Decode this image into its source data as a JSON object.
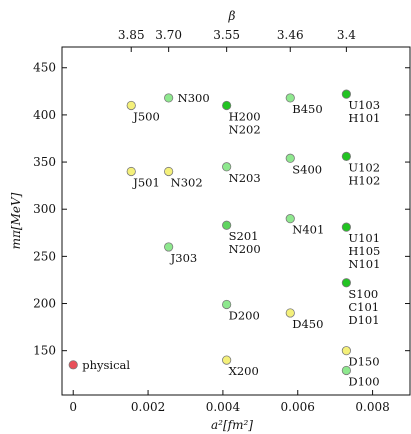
{
  "chart_data": {
    "type": "scatter",
    "title": "",
    "xlabel": "a²[fm²]",
    "ylabel": "mπ[MeV]",
    "top_xlabel": "β",
    "xlim": [
      -0.0003,
      0.009
    ],
    "ylim": [
      103,
      472
    ],
    "x_ticks": [
      {
        "value": 0,
        "label": "0"
      },
      {
        "value": 0.002,
        "label": "0.002"
      },
      {
        "value": 0.004,
        "label": "0.004"
      },
      {
        "value": 0.006,
        "label": "0.006"
      },
      {
        "value": 0.008,
        "label": "0.008"
      }
    ],
    "y_ticks": [
      {
        "value": 150,
        "label": "150"
      },
      {
        "value": 200,
        "label": "200"
      },
      {
        "value": 250,
        "label": "250"
      },
      {
        "value": 300,
        "label": "300"
      },
      {
        "value": 350,
        "label": "350"
      },
      {
        "value": 400,
        "label": "400"
      },
      {
        "value": 450,
        "label": "450"
      }
    ],
    "top_ticks": [
      {
        "value": 0.00155,
        "label": "3.85"
      },
      {
        "value": 0.00255,
        "label": "3.70"
      },
      {
        "value": 0.0041,
        "label": "3.55"
      },
      {
        "value": 0.0058,
        "label": "3.46"
      },
      {
        "value": 0.0073,
        "label": "3.4"
      }
    ],
    "grid": false,
    "colors": {
      "physical": "#e8505a",
      "yellow": "#f4f07a",
      "green_light": "#8ee88e",
      "green_mid": "#5fd45f",
      "green_dark": "#22c322",
      "stroke": "#7a7a7a"
    },
    "points": [
      {
        "x": 0.0,
        "y": 135,
        "color": "physical",
        "labels": [
          "physical"
        ],
        "pos": "right"
      },
      {
        "x": 0.00155,
        "y": 410,
        "color": "yellow",
        "labels": [
          "J500"
        ],
        "pos": "below"
      },
      {
        "x": 0.00155,
        "y": 340,
        "color": "yellow",
        "labels": [
          "J501"
        ],
        "pos": "below"
      },
      {
        "x": 0.00255,
        "y": 418,
        "color": "green_light",
        "labels": [
          "N300"
        ],
        "pos": "right"
      },
      {
        "x": 0.00255,
        "y": 340,
        "color": "yellow",
        "labels": [
          "N302"
        ],
        "pos": "below"
      },
      {
        "x": 0.00255,
        "y": 260,
        "color": "green_light",
        "labels": [
          "J303"
        ],
        "pos": "below"
      },
      {
        "x": 0.0041,
        "y": 410,
        "color": "green_dark",
        "labels": [
          "H200",
          "N202"
        ],
        "pos": "below"
      },
      {
        "x": 0.0041,
        "y": 345,
        "color": "green_light",
        "labels": [
          "N203"
        ],
        "pos": "below"
      },
      {
        "x": 0.0041,
        "y": 283,
        "color": "green_mid",
        "labels": [
          "S201",
          "N200"
        ],
        "pos": "below"
      },
      {
        "x": 0.0041,
        "y": 199,
        "color": "green_light",
        "labels": [
          "D200"
        ],
        "pos": "below"
      },
      {
        "x": 0.0041,
        "y": 140,
        "color": "yellow",
        "labels": [
          "X200"
        ],
        "pos": "below"
      },
      {
        "x": 0.0058,
        "y": 418,
        "color": "green_light",
        "labels": [
          "B450"
        ],
        "pos": "below"
      },
      {
        "x": 0.0058,
        "y": 354,
        "color": "green_light",
        "labels": [
          "S400"
        ],
        "pos": "below"
      },
      {
        "x": 0.0058,
        "y": 290,
        "color": "green_light",
        "labels": [
          "N401"
        ],
        "pos": "below"
      },
      {
        "x": 0.0058,
        "y": 190,
        "color": "yellow",
        "labels": [
          "D450"
        ],
        "pos": "below"
      },
      {
        "x": 0.0073,
        "y": 422,
        "color": "green_dark",
        "labels": [
          "U103",
          "H101"
        ],
        "pos": "below"
      },
      {
        "x": 0.0073,
        "y": 356,
        "color": "green_dark",
        "labels": [
          "U102",
          "H102"
        ],
        "pos": "below"
      },
      {
        "x": 0.0073,
        "y": 281,
        "color": "green_dark",
        "labels": [
          "U101",
          "H105",
          "N101"
        ],
        "pos": "below"
      },
      {
        "x": 0.0073,
        "y": 222,
        "color": "green_dark",
        "labels": [
          "S100",
          "C101",
          "D101"
        ],
        "pos": "below"
      },
      {
        "x": 0.0073,
        "y": 150,
        "color": "yellow",
        "labels": [
          "D150"
        ],
        "pos": "below"
      },
      {
        "x": 0.0073,
        "y": 129,
        "color": "green_light",
        "labels": [
          "D100"
        ],
        "pos": "below"
      }
    ]
  }
}
